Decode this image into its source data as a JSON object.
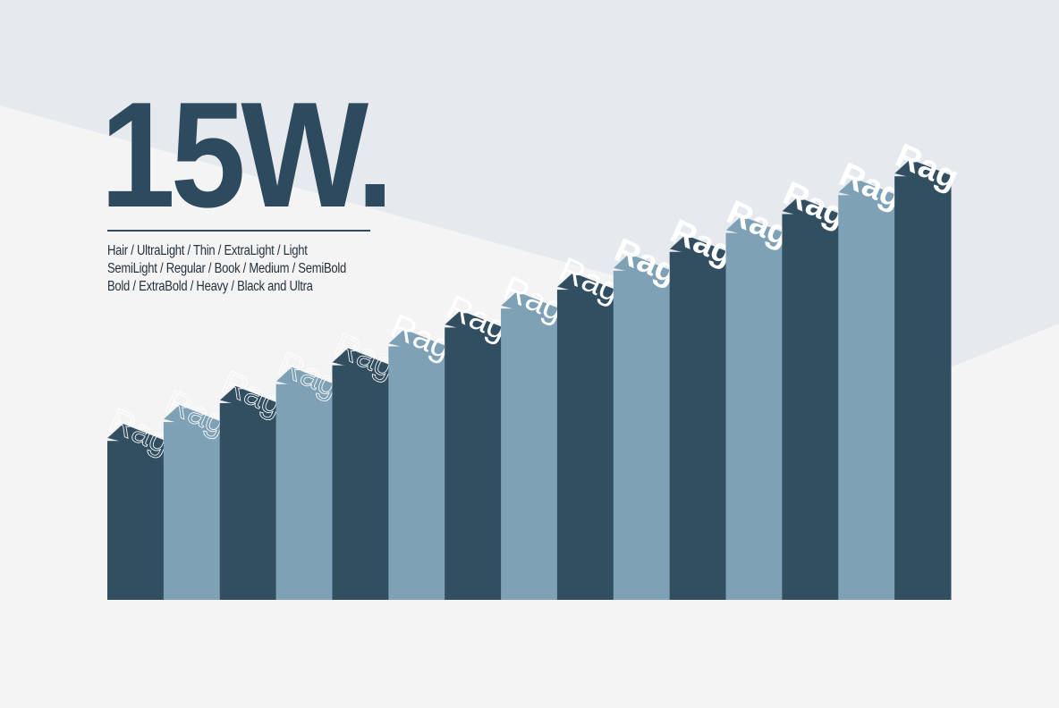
{
  "title": "15W.",
  "weights_lines": [
    "Hair / UltraLight / Thin / ExtraLight / Light",
    "SemiLight / Regular / Book / Medium / SemiBold",
    "Bold / ExtraBold / Heavy / Black and Ultra"
  ],
  "colors": {
    "dark": "#324f62",
    "light": "#7ea1b6",
    "title": "#2e4a5e",
    "background": "#f4f4f4",
    "band": "#e6eaee"
  },
  "chart_data": {
    "type": "bar",
    "label": "Rag",
    "categories": [
      "Hair",
      "UltraLight",
      "Thin",
      "ExtraLight",
      "Light",
      "SemiLight",
      "Regular",
      "Book",
      "Medium",
      "SemiBold",
      "Bold",
      "ExtraBold",
      "Heavy",
      "Black",
      "Ultra"
    ],
    "values": [
      1,
      2,
      3,
      4,
      5,
      6,
      7,
      8,
      9,
      10,
      11,
      12,
      13,
      14,
      15
    ],
    "bar_text": [
      "Rag",
      "Rag",
      "Rag",
      "Rag",
      "Rag",
      "Rag",
      "Rag",
      "Rag",
      "Rag",
      "Rag",
      "Rag",
      "Rag",
      "Rag",
      "Rag",
      "Rag"
    ],
    "grid": false
  }
}
